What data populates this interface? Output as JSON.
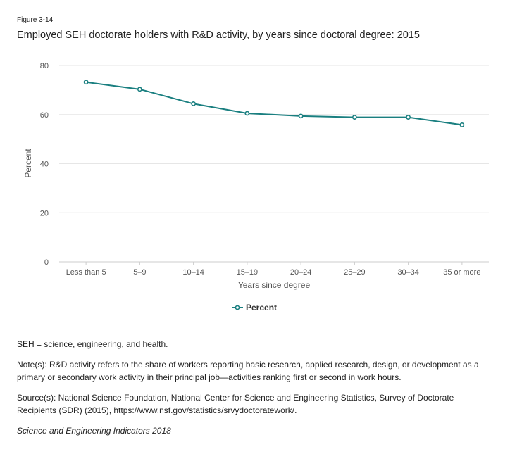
{
  "figure_label": "Figure 3-14",
  "chart_data": {
    "type": "line",
    "title": "Employed SEH doctorate holders with R&D activity, by years since doctoral degree: 2015",
    "categories": [
      "Less than 5",
      "5–9",
      "10–14",
      "15–19",
      "20–24",
      "25–29",
      "30–34",
      "35 or more"
    ],
    "series": [
      {
        "name": "Percent",
        "values": [
          73.2,
          70.3,
          64.4,
          60.5,
          59.4,
          58.9,
          58.9,
          55.8
        ],
        "color": "#1a7f80"
      }
    ],
    "xlabel": "Years since degree",
    "ylabel": "Percent",
    "ylim": [
      0,
      80
    ],
    "yticks": [
      0,
      20,
      40,
      60,
      80
    ],
    "grid": true,
    "legend_position": "bottom-center"
  },
  "notes": {
    "abbrev": "SEH = science, engineering, and health.",
    "note": "Note(s): R&D activity refers to the share of workers reporting basic research, applied research, design, or development as a primary or secondary work activity in their principal job—activities ranking first or second in work hours.",
    "source": "Source(s): National Science Foundation, National Center for Science and Engineering Statistics, Survey of Doctorate Recipients (SDR) (2015), https://www.nsf.gov/statistics/srvydoctoratework/.",
    "credit": "Science and Engineering Indicators 2018"
  }
}
